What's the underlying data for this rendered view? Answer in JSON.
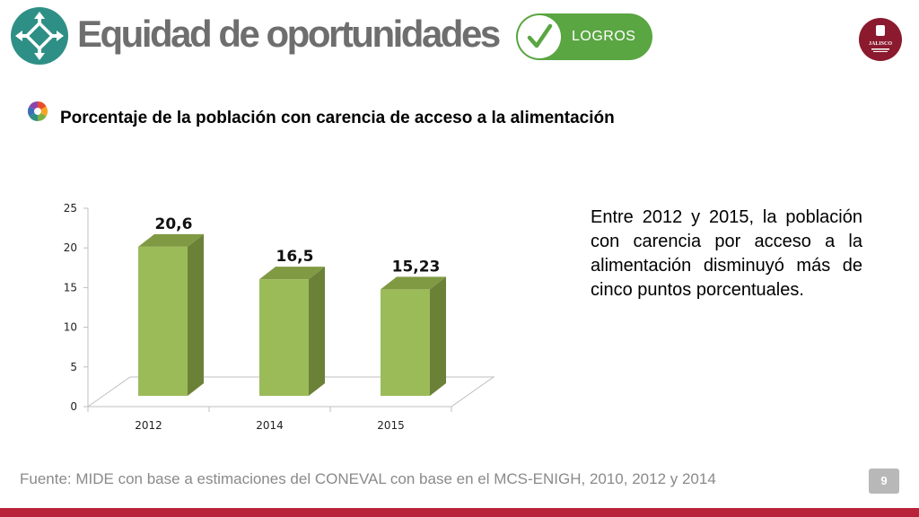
{
  "header": {
    "title": "Equidad de oportunidades",
    "badge_label": "LOGROS",
    "seal_text": "JALISCO",
    "logo_icon": "diamond-arrows-icon",
    "brand_color": "#2e8f86",
    "badge_color": "#5aa642"
  },
  "section": {
    "subtitle": "Porcentaje de la población con carencia de acceso a la alimentación",
    "description": "Entre 2012 y 2015, la población con carencia por acceso a la alimentación disminuyó más de cinco puntos porcentuales."
  },
  "chart_data": {
    "type": "bar",
    "categories": [
      "2012",
      "2014",
      "2015"
    ],
    "values": [
      20.6,
      16.5,
      15.23
    ],
    "data_labels": [
      "20,6",
      "16,5",
      "15,23"
    ],
    "y_ticks": [
      "0",
      "5",
      "10",
      "15",
      "20",
      "25"
    ],
    "ylim": [
      0,
      25
    ],
    "grid": false,
    "bar_color": "#9bbb59",
    "title": "",
    "xlabel": "",
    "ylabel": ""
  },
  "footer": {
    "source": "Fuente: MIDE con base a  estimaciones del CONEVAL con base en el MCS-ENIGH, 2010, 2012 y 2014",
    "page_number": "9",
    "accent_color": "#b8233b"
  }
}
